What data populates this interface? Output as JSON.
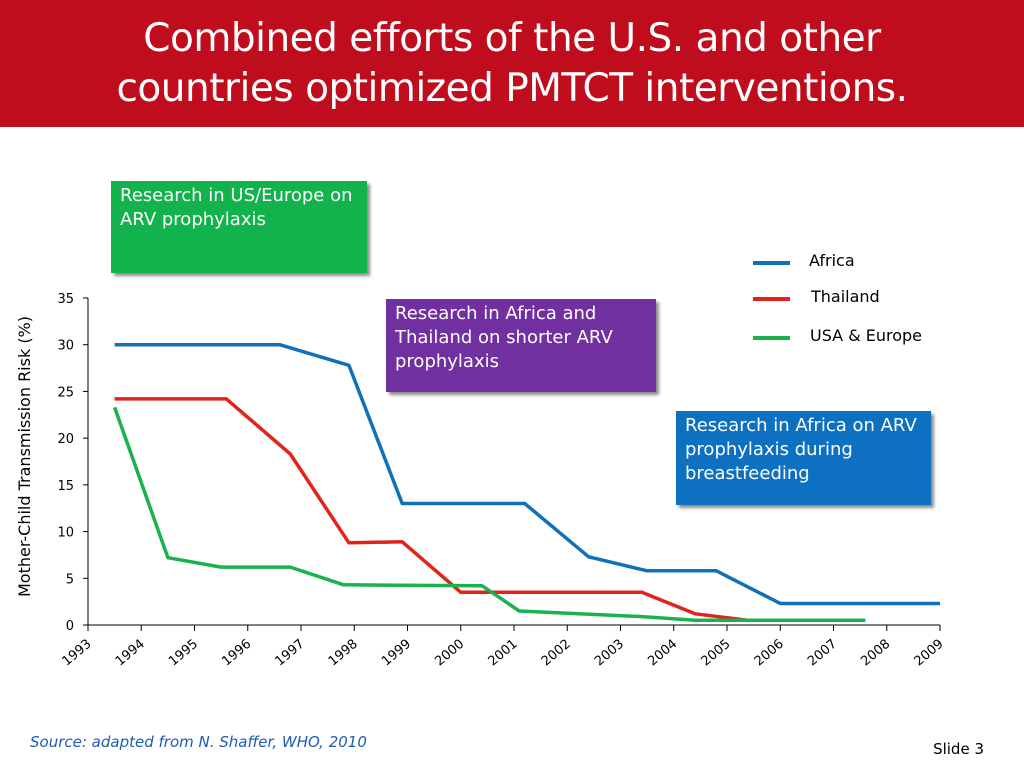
{
  "slide": {
    "title_line1": "Combined efforts of the U.S. and other",
    "title_line2": "countries optimized PMTCT interventions.",
    "source": "Source: adapted from  N. Shaffer, WHO, 2010",
    "slide_number": "Slide 3"
  },
  "callouts": {
    "green": "Research in US/Europe on ARV prophylaxis",
    "purple": "Research in Africa and Thailand on shorter ARV prophylaxis",
    "blue": "Research in Africa on ARV prophylaxis during breastfeeding"
  },
  "colors": {
    "title_bar": "#c00d1e",
    "africa": "#1070b8",
    "thailand": "#e2231a",
    "usa_europe": "#19b24d"
  },
  "chart_data": {
    "type": "line",
    "title": "",
    "xlabel": "",
    "ylabel": "Mother-Child Transmission Risk (%)",
    "ylim": [
      0,
      35
    ],
    "xlim": [
      1993,
      2009
    ],
    "yticks": [
      "0",
      "5",
      "10",
      "15",
      "20",
      "25",
      "30",
      "35"
    ],
    "xticks": [
      "1993",
      "1994",
      "1995",
      "1996",
      "1997",
      "1998",
      "1999",
      "2000",
      "2001",
      "2002",
      "2003",
      "2004",
      "2005",
      "2006",
      "2007",
      "2008",
      "2009"
    ],
    "legend_position": "right",
    "series": [
      {
        "name": "Africa",
        "points": [
          [
            1993.5,
            30
          ],
          [
            1996.6,
            30
          ],
          [
            1997.9,
            27.8
          ],
          [
            1998.9,
            13
          ],
          [
            2001.2,
            13
          ],
          [
            2002.4,
            7.3
          ],
          [
            2003.5,
            5.8
          ],
          [
            2004.8,
            5.8
          ],
          [
            2006.0,
            2.3
          ],
          [
            2009.0,
            2.3
          ]
        ]
      },
      {
        "name": "Thailand",
        "points": [
          [
            1993.5,
            24.2
          ],
          [
            1995.6,
            24.2
          ],
          [
            1996.8,
            18.3
          ],
          [
            1997.9,
            8.8
          ],
          [
            1998.9,
            8.9
          ],
          [
            2000.0,
            3.5
          ],
          [
            2003.4,
            3.5
          ],
          [
            2004.4,
            1.2
          ],
          [
            2005.4,
            0.5
          ],
          [
            2006.6,
            0.5
          ]
        ]
      },
      {
        "name": "USA & Europe",
        "points": [
          [
            1993.5,
            23.3
          ],
          [
            1994.5,
            7.2
          ],
          [
            1995.5,
            6.2
          ],
          [
            1996.8,
            6.2
          ],
          [
            1997.8,
            4.3
          ],
          [
            2000.4,
            4.2
          ],
          [
            2001.1,
            1.5
          ],
          [
            2003.4,
            0.9
          ],
          [
            2004.4,
            0.5
          ],
          [
            2007.6,
            0.5
          ]
        ]
      }
    ]
  }
}
